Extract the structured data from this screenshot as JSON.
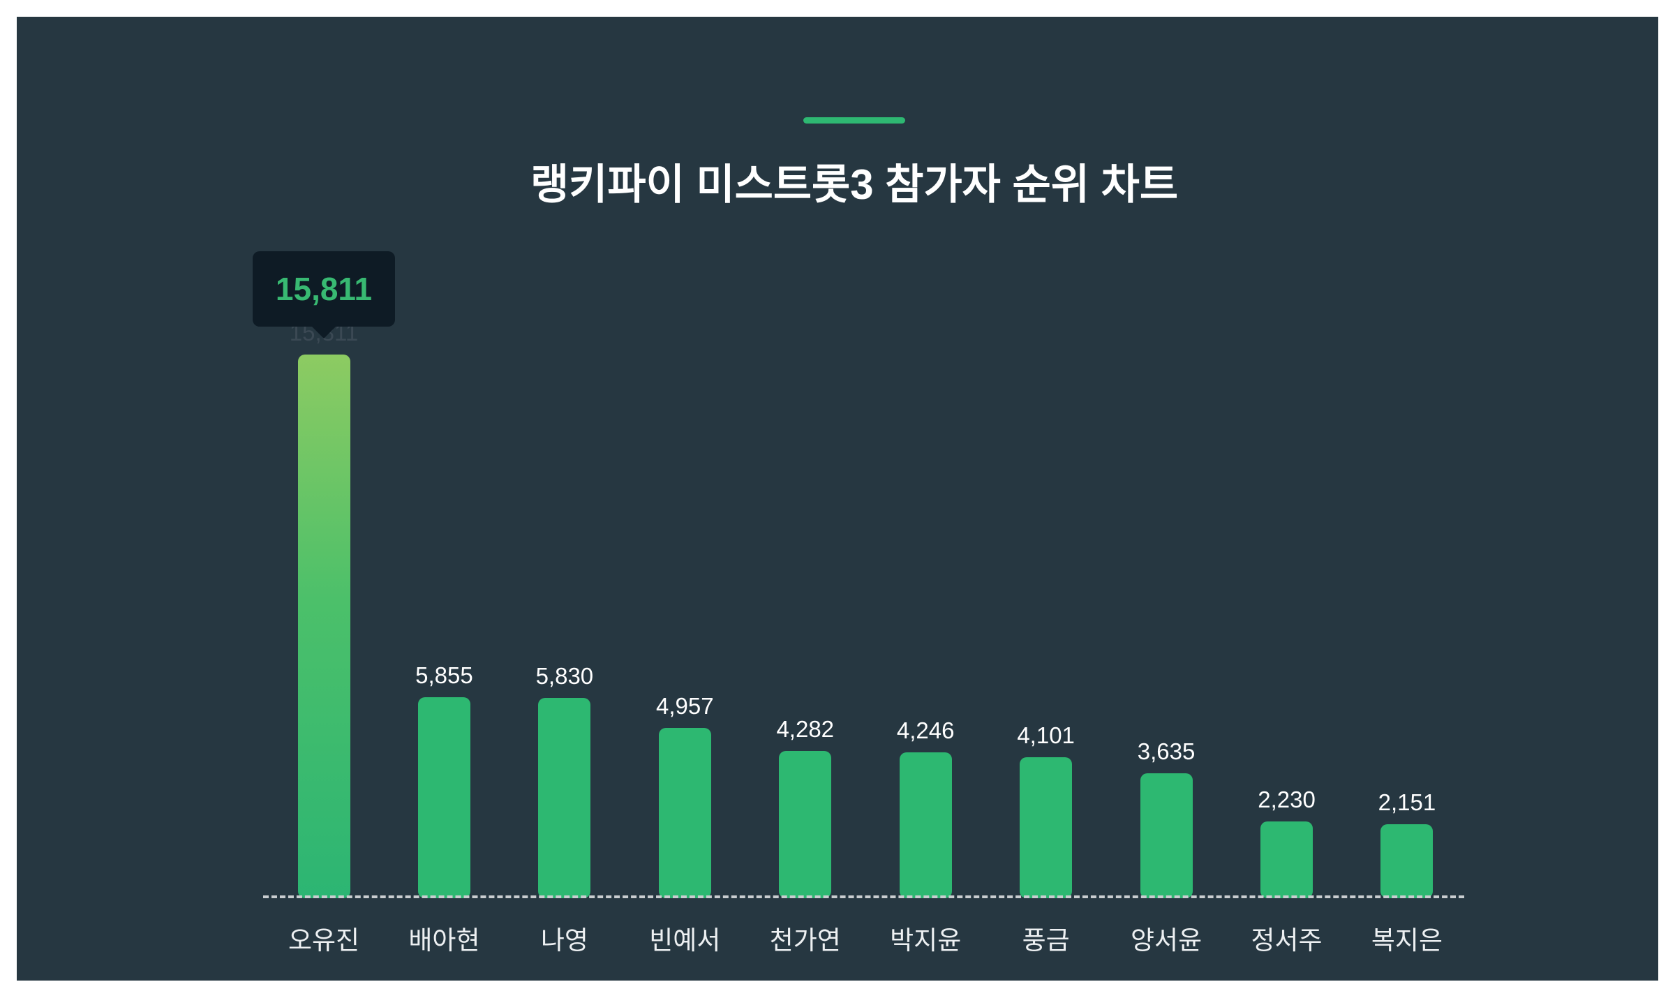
{
  "page": {
    "outer_background": "#ffffff",
    "panel_background": "#263741"
  },
  "header": {
    "accent_line_color": "#2eb872",
    "title": "랭키파이 미스트롯3 참가자 순위 차트"
  },
  "tooltip": {
    "value": "15,811",
    "text_color": "#38b972",
    "background": "#0e1b25",
    "attached_to": "오유진"
  },
  "chart_data": {
    "type": "bar",
    "title": "랭키파이 미스트롯3 참가자 순위 차트",
    "categories": [
      "오유진",
      "배아현",
      "나영",
      "빈예서",
      "천가연",
      "박지윤",
      "풍금",
      "양서윤",
      "정서주",
      "복지은"
    ],
    "values": [
      15811,
      5855,
      5830,
      4957,
      4282,
      4246,
      4101,
      3635,
      2230,
      2151
    ],
    "value_labels": [
      "15,811",
      "5,855",
      "5,830",
      "4,957",
      "4,282",
      "4,246",
      "4,101",
      "3,635",
      "2,230",
      "2,151"
    ],
    "highlighted_index": 0,
    "bar_color": "#2db871",
    "highlight_gradient_top": "#8dcb62",
    "highlight_gradient_bottom": "#2cb573",
    "value_label_color": "#ffffff",
    "dimmed_value_label_color": "#3b4954",
    "category_label_color": "#edf0f2",
    "baseline_style": "dashed",
    "baseline_color": "#c9cdd0",
    "ylim": [
      0,
      15811
    ],
    "grid": false,
    "legend": false
  }
}
